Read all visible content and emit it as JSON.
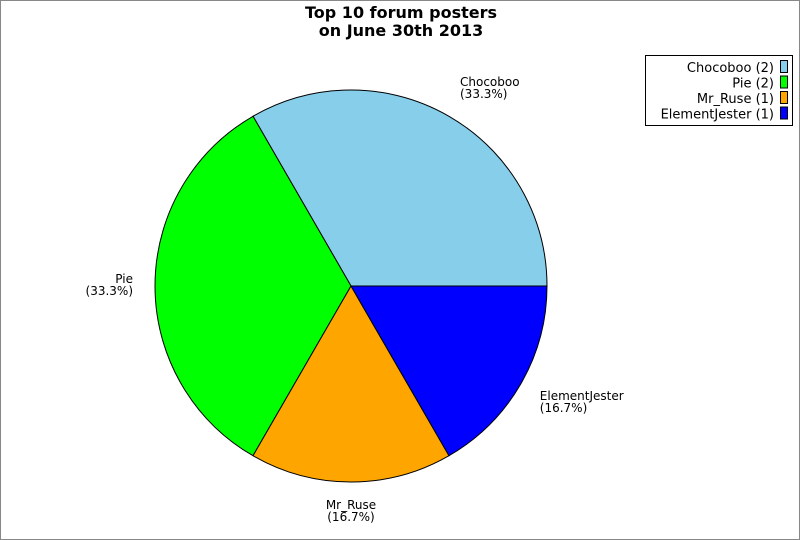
{
  "chart_data": {
    "type": "pie",
    "title": [
      "Top 10 forum posters",
      "on June 30th 2013"
    ],
    "slices": [
      {
        "label": "Chocoboo",
        "value": 2,
        "percent": "(33.3%)",
        "legend": "Chocoboo (2)",
        "color": "#87ceeb"
      },
      {
        "label": "Pie",
        "value": 2,
        "percent": "(33.3%)",
        "legend": "Pie (2)",
        "color": "#00ff00"
      },
      {
        "label": "Mr_Ruse",
        "value": 1,
        "percent": "(16.7%)",
        "legend": "Mr_Ruse (1)",
        "color": "#ffa500"
      },
      {
        "label": "ElementJester",
        "value": 1,
        "percent": "(16.7%)",
        "legend": "ElementJester (1)",
        "color": "#0000ff"
      }
    ],
    "start_angle_deg": 0,
    "direction": "counterclockwise",
    "legend_position": "top-right"
  }
}
